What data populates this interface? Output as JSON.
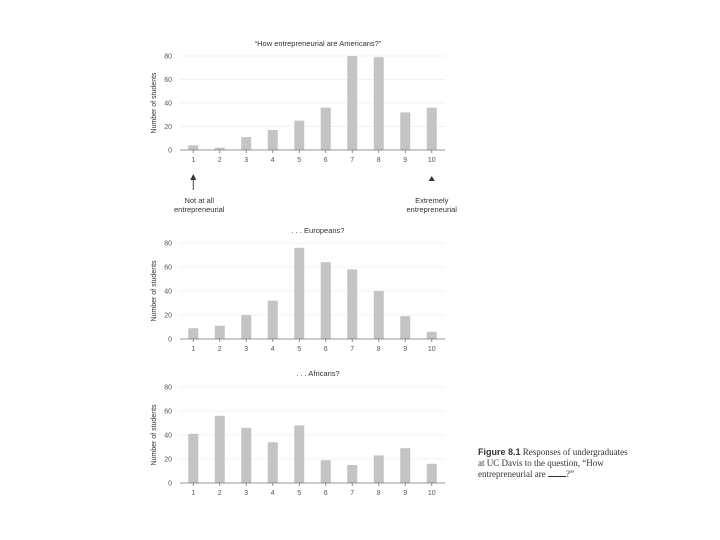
{
  "chart_data": [
    {
      "type": "bar",
      "title": "“How entrepreneurial are Americans?”",
      "xlabel": "",
      "ylabel": "Number of students",
      "categories": [
        "1",
        "2",
        "3",
        "4",
        "5",
        "6",
        "7",
        "8",
        "9",
        "10"
      ],
      "values": [
        4,
        2,
        11,
        17,
        25,
        36,
        80,
        79,
        32,
        36
      ],
      "ylim": [
        0,
        80
      ],
      "yticks": [
        "0",
        "20",
        "40",
        "60",
        "80"
      ],
      "annotations": {
        "left": [
          "Not at all",
          "entrepreneurial"
        ],
        "right": [
          "Extremely",
          "entrepreneurial"
        ]
      }
    },
    {
      "type": "bar",
      "title": ". . . Europeans?",
      "xlabel": "",
      "ylabel": "Number of students",
      "categories": [
        "1",
        "2",
        "3",
        "4",
        "5",
        "6",
        "7",
        "8",
        "9",
        "10"
      ],
      "values": [
        9,
        11,
        20,
        32,
        76,
        64,
        58,
        40,
        19,
        6
      ],
      "ylim": [
        0,
        80
      ],
      "yticks": [
        "0",
        "20",
        "40",
        "60",
        "80"
      ]
    },
    {
      "type": "bar",
      "title": ". . . Africans?",
      "xlabel": "",
      "ylabel": "Number of students",
      "categories": [
        "1",
        "2",
        "3",
        "4",
        "5",
        "6",
        "7",
        "8",
        "9",
        "10"
      ],
      "values": [
        41,
        56,
        46,
        34,
        48,
        19,
        15,
        23,
        29,
        16
      ],
      "ylim": [
        0,
        80
      ],
      "yticks": [
        "0",
        "20",
        "40",
        "60",
        "80"
      ]
    }
  ],
  "caption": {
    "label": "Figure 8.1",
    "text": "Responses of undergraduates at UC Davis to the question, “How entrepreneurial are",
    "end": "?”"
  }
}
